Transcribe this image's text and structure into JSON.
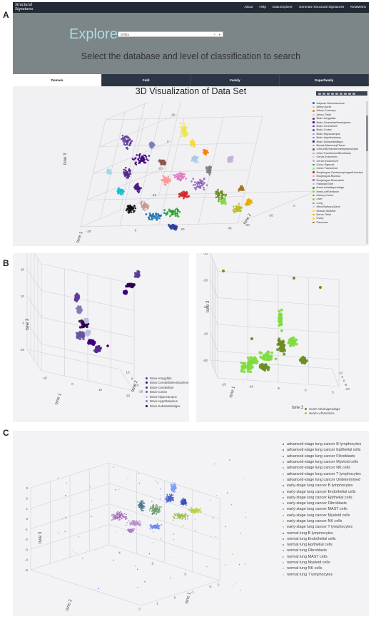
{
  "panel_labels": {
    "a": "A",
    "b": "B",
    "c": "C"
  },
  "site": {
    "logo_top": "Structural",
    "logo_bottom": "Signatures",
    "nav": [
      "About",
      "Help",
      "Data Explorer",
      "Generate Structural Signatures",
      "KinaMetrix"
    ]
  },
  "explore": {
    "title": "Explore",
    "database_value": "GTEx",
    "clear_icon": "×",
    "dropdown_icon": "▾",
    "subtitle": "Select the database and level of classification to search"
  },
  "tabs": [
    "Domain",
    "Fold",
    "Family",
    "Superfamily"
  ],
  "active_tab": "Domain",
  "visualization_title": "3D Visualization of Data Set",
  "toolbar_icons": [
    "camera-icon",
    "zoom-icon",
    "pan-icon",
    "orbit-icon",
    "turntable-icon",
    "reset-icon",
    "hover-icon",
    "spike-icon",
    "plotly-logo-icon"
  ],
  "panel_a": {
    "axis_titles": [
      "tsne 3",
      "tsne 2",
      "tsne 1"
    ],
    "z_ticks": [
      "40",
      "20",
      "0",
      "-20",
      "-40"
    ],
    "x_ticks": [
      "-20",
      "0",
      "20",
      "40"
    ],
    "y_ticks": [
      "-40",
      "-20",
      "0",
      "20"
    ],
    "legend": [
      {
        "label": "Adipose-Subcutaneous",
        "color": "#1f77b4"
      },
      {
        "label": "Artery-Aorta",
        "color": "#aec7e8"
      },
      {
        "label": "Artery-Coronary",
        "color": "#ff7f0e"
      },
      {
        "label": "Artery-Tibial",
        "color": "#ffbb78"
      },
      {
        "label": "Brain-Amygdala",
        "color": "#5e3c99"
      },
      {
        "label": "Brain-CerebellarHemisphere",
        "color": "#3f007d"
      },
      {
        "label": "Brain-Cerebellum",
        "color": "#54278f"
      },
      {
        "label": "Brain-Cortex",
        "color": "#6a51a3"
      },
      {
        "label": "Brain-Hippocampus",
        "color": "#9e9ac8"
      },
      {
        "label": "Brain-Hypothalamus",
        "color": "#807dba"
      },
      {
        "label": "Brain-SubstantiaNigra",
        "color": "#4a1486"
      },
      {
        "label": "Breast-MammaryTissue",
        "color": "#e377c2"
      },
      {
        "label": "Cells-EBVtransformedlymphocytes",
        "color": "#8c564b"
      },
      {
        "label": "Cells-Transformedfibroblasts",
        "color": "#c49c94"
      },
      {
        "label": "Cervix-Ectocervix",
        "color": "#f7b6d2"
      },
      {
        "label": "Cervix-Endocervix",
        "color": "#de9ed6"
      },
      {
        "label": "Colon-Sigmoid",
        "color": "#2ca02c"
      },
      {
        "label": "Colon-Transverse",
        "color": "#98df8a"
      },
      {
        "label": "Esophagus-GastroesophagealJunction",
        "color": "#d62728"
      },
      {
        "label": "Esophagus-Mucosa",
        "color": "#ff9896"
      },
      {
        "label": "Esophagus-Muscularis",
        "color": "#9467bd"
      },
      {
        "label": "FallopianTube",
        "color": "#c5b0d5"
      },
      {
        "label": "Heart-AtrialAppendage",
        "color": "#6b8e23"
      },
      {
        "label": "Heart-LeftVentricle",
        "color": "#7fdc3f"
      },
      {
        "label": "Kidney-Cortex",
        "color": "#7f7f7f"
      },
      {
        "label": "Liver",
        "color": "#bcbd22"
      },
      {
        "label": "Lung",
        "color": "#17becf"
      },
      {
        "label": "MinorSalivaryGland",
        "color": "#9edae5"
      },
      {
        "label": "Muscle-Skeletal",
        "color": "#f0e442"
      },
      {
        "label": "Nerve-Tibial",
        "color": "#e6ab02"
      },
      {
        "label": "Ovary",
        "color": "#ffd92f"
      },
      {
        "label": "Pancreas",
        "color": "#a6761d"
      }
    ]
  },
  "panel_b_left": {
    "axis_titles": [
      "tsne 3",
      "tsne 1",
      "tsne 2"
    ],
    "z_ticks": [
      "30",
      "20",
      "10",
      "0",
      "-10"
    ],
    "x_ticks": [
      "-10",
      "0",
      "10",
      "20"
    ],
    "y_ticks": [
      "-20",
      "-10",
      "0",
      "10"
    ],
    "legend": [
      {
        "label": "Brain-Amygdala",
        "color": "#5e3c99"
      },
      {
        "label": "Brain-CerebellarHemisphere",
        "color": "#3f007d"
      },
      {
        "label": "Brain-Cerebellum",
        "color": "#54278f"
      },
      {
        "label": "Brain-Cortex",
        "color": "#6a51a3"
      },
      {
        "label": "Brain-Hippocampus",
        "color": "#bcbddc"
      },
      {
        "label": "Brain-Hypothalamus",
        "color": "#807dba"
      },
      {
        "label": "Brain-SubstantiaNigra",
        "color": "#2d004b"
      }
    ]
  },
  "panel_b_right": {
    "axis_titles": [
      "tsne 3",
      "tsne 1",
      "tsne 2"
    ],
    "z_ticks": [
      "-10",
      "-20",
      "-30",
      "-40",
      "-50"
    ],
    "x_ticks": [
      "-15",
      "-10",
      "-5",
      "0",
      "5"
    ],
    "y_ticks": [
      "-10",
      "-5",
      "0",
      "5",
      "10"
    ],
    "legend": [
      {
        "label": "Heart-AtrialAppendage",
        "color": "#6b8e23"
      },
      {
        "label": "Heart-LeftVentricle",
        "color": "#7fdc3f"
      }
    ]
  },
  "panel_c": {
    "axis_titles": [
      "tsne 3",
      "tsne 2",
      "tsne 1"
    ],
    "z_ticks": [
      "3",
      "2",
      "1",
      "0",
      "-1",
      "-2",
      "-3",
      "-4",
      "-5"
    ],
    "x_ticks": [
      "-4",
      "-2",
      "0",
      "2"
    ],
    "y_ticks": [
      "-2",
      "-1",
      "0",
      "1",
      "2"
    ],
    "legend": [
      {
        "label": "advanced-stage lung cancer B lymphocytes",
        "color": "#3b4cc0"
      },
      {
        "label": "advanced-stage lung cancer Epithelial cells",
        "color": "#4961d2"
      },
      {
        "label": "advanced-stage lung cancer Fibroblasts",
        "color": "#5977e3"
      },
      {
        "label": "advanced-stage lung cancer Myeloid cells",
        "color": "#6a8bef"
      },
      {
        "label": "advanced-stage lung cancer NK cells",
        "color": "#7b9ff9"
      },
      {
        "label": "advanced-stage lung cancer T lymphocytes",
        "color": "#8db0fe"
      },
      {
        "label": "advanced-stage lung cancer Undetermined",
        "color": "#a0c0ff"
      },
      {
        "label": "early-stage lung cancer B lymphocytes",
        "color": "#4b7a8a"
      },
      {
        "label": "early-stage lung cancer Endothelial cells",
        "color": "#5a8a7a"
      },
      {
        "label": "early-stage lung cancer Epithelial cells",
        "color": "#6a9a6a"
      },
      {
        "label": "early-stage lung cancer Fibroblasts",
        "color": "#7aa85e"
      },
      {
        "label": "early-stage lung cancer MAST cells",
        "color": "#8ab456"
      },
      {
        "label": "early-stage lung cancer Myeloid cells",
        "color": "#9abf50"
      },
      {
        "label": "early-stage lung cancer NK cells",
        "color": "#aac84d"
      },
      {
        "label": "early-stage lung cancer T lymphocytes",
        "color": "#bccf4e"
      },
      {
        "label": "normal lung B lymphocytes",
        "color": "#8e44ad"
      },
      {
        "label": "normal lung Endothelial cells",
        "color": "#9b59b6"
      },
      {
        "label": "normal lung Epithelial cells",
        "color": "#a569bd"
      },
      {
        "label": "normal lung Fibroblasts",
        "color": "#b07cc6"
      },
      {
        "label": "normal lung MAST cells",
        "color": "#bb8fce"
      },
      {
        "label": "normal lung Myeloid cells",
        "color": "#c39bd3"
      },
      {
        "label": "normal lung NK cells",
        "color": "#d2b4de"
      },
      {
        "label": "normal lung T lymphocytes",
        "color": "#dcc6e8"
      }
    ]
  }
}
